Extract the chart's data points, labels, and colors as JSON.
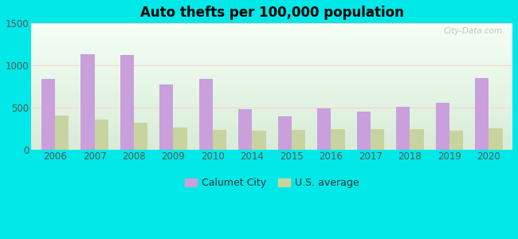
{
  "title": "Auto thefts per 100,000 population",
  "years": [
    2006,
    2007,
    2008,
    2009,
    2010,
    2014,
    2015,
    2016,
    2017,
    2018,
    2019,
    2020
  ],
  "calumet_city": [
    840,
    1130,
    1120,
    775,
    835,
    475,
    390,
    485,
    455,
    510,
    555,
    850
  ],
  "us_average": [
    400,
    360,
    315,
    260,
    235,
    225,
    230,
    245,
    240,
    240,
    225,
    250
  ],
  "bar_color_city": "#c9a0dc",
  "bar_color_us": "#c8d4a0",
  "ylim": [
    0,
    1500
  ],
  "yticks": [
    0,
    500,
    1000,
    1500
  ],
  "legend_city": "Calumet City",
  "legend_us": "U.S. average",
  "bar_width": 0.35,
  "figure_bg": "#00e8e8",
  "watermark": "City-Data.com",
  "bg_top": "#f5fff5",
  "bg_bottom": "#d8ecd8"
}
